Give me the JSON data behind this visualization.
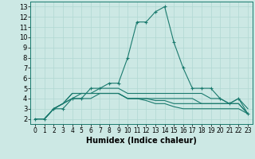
{
  "xlabel": "Humidex (Indice chaleur)",
  "background_color": "#cce8e4",
  "line_color": "#1a7a6e",
  "grid_color": "#b0d8d2",
  "xlim": [
    -0.5,
    23.5
  ],
  "ylim": [
    1.5,
    13.5
  ],
  "xticks": [
    0,
    1,
    2,
    3,
    4,
    5,
    6,
    7,
    8,
    9,
    10,
    11,
    12,
    13,
    14,
    15,
    16,
    17,
    18,
    19,
    20,
    21,
    22,
    23
  ],
  "yticks": [
    2,
    3,
    4,
    5,
    6,
    7,
    8,
    9,
    10,
    11,
    12,
    13
  ],
  "series": [
    {
      "x": [
        0,
        1,
        2,
        3,
        4,
        5,
        6,
        7,
        8,
        9,
        10,
        11,
        12,
        13,
        14,
        15,
        16,
        17,
        18,
        19,
        20,
        21,
        22,
        23
      ],
      "y": [
        2,
        2,
        3,
        3,
        4,
        4,
        5,
        5,
        5.5,
        5.5,
        8,
        11.5,
        11.5,
        12.5,
        13,
        9.5,
        7,
        5,
        5,
        5,
        4,
        3.5,
        4,
        2.5
      ],
      "marker": true
    },
    {
      "x": [
        0,
        1,
        2,
        3,
        4,
        5,
        6,
        7,
        8,
        9,
        10,
        11,
        12,
        13,
        14,
        15,
        16,
        17,
        18,
        19,
        20,
        21,
        22,
        23
      ],
      "y": [
        2,
        2,
        3,
        3.5,
        4.5,
        4.5,
        4.5,
        5,
        5,
        5,
        4.5,
        4.5,
        4.5,
        4.5,
        4.5,
        4.5,
        4.5,
        4.5,
        4.5,
        4,
        4,
        3.5,
        4,
        3
      ],
      "marker": false
    },
    {
      "x": [
        0,
        1,
        2,
        3,
        4,
        5,
        6,
        7,
        8,
        9,
        10,
        11,
        12,
        13,
        14,
        15,
        16,
        17,
        18,
        19,
        20,
        21,
        22,
        23
      ],
      "y": [
        2,
        2,
        3,
        3.5,
        4.5,
        4.5,
        4.5,
        4.5,
        4.5,
        4.5,
        4,
        4,
        4,
        4,
        4,
        4,
        4,
        4,
        3.5,
        3.5,
        3.5,
        3.5,
        3.5,
        2.5
      ],
      "marker": false
    },
    {
      "x": [
        0,
        1,
        2,
        3,
        4,
        5,
        6,
        7,
        8,
        9,
        10,
        11,
        12,
        13,
        14,
        15,
        16,
        17,
        18,
        19,
        20,
        21,
        22,
        23
      ],
      "y": [
        2,
        2,
        3,
        3.5,
        4,
        4.5,
        4.5,
        4.5,
        4.5,
        4.5,
        4,
        4,
        4,
        3.8,
        3.8,
        3.5,
        3.5,
        3.5,
        3.5,
        3.5,
        3.5,
        3.5,
        3.5,
        2.5
      ],
      "marker": false
    },
    {
      "x": [
        0,
        1,
        2,
        3,
        4,
        5,
        6,
        7,
        8,
        9,
        10,
        11,
        12,
        13,
        14,
        15,
        16,
        17,
        18,
        19,
        20,
        21,
        22,
        23
      ],
      "y": [
        2,
        2,
        3,
        3.5,
        4,
        4,
        4,
        4.5,
        4.5,
        4.5,
        4,
        4,
        3.8,
        3.5,
        3.5,
        3.2,
        3.0,
        3.0,
        3.0,
        3.0,
        3.0,
        3.0,
        3.0,
        2.5
      ],
      "marker": false
    }
  ],
  "figsize": [
    3.2,
    2.0
  ],
  "dpi": 100
}
